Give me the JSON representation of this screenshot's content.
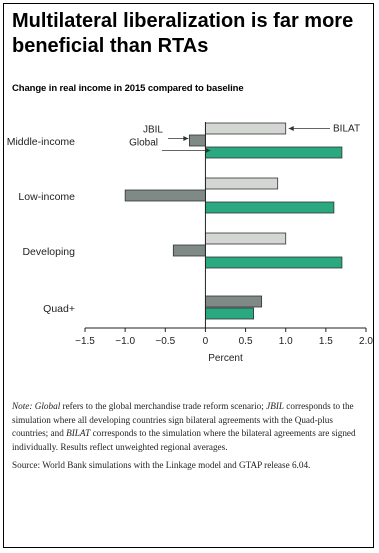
{
  "title": "Multilateral liberalization is far more beneficial than RTAs",
  "subtitle": "Change in real income in 2015 compared to baseline",
  "colors": {
    "jbil": "#7f8a86",
    "bilat": "#d3d6d3",
    "global": "#2aa880",
    "bar_border": "#333333"
  },
  "chart_data": {
    "type": "bar",
    "orientation": "horizontal",
    "categories": [
      "Middle-income",
      "Low-income",
      "Developing",
      "Quad+"
    ],
    "series": [
      {
        "name": "BILAT",
        "values": [
          1.0,
          0.9,
          1.0,
          null
        ]
      },
      {
        "name": "JBIL",
        "values": [
          -0.2,
          -1.0,
          -0.4,
          0.7
        ]
      },
      {
        "name": "Global",
        "values": [
          1.7,
          1.6,
          1.7,
          0.6
        ]
      }
    ],
    "xlabel": "Percent",
    "xlim": [
      -1.5,
      2.0
    ],
    "xticks": [
      "−1.5",
      "−1.0",
      "−0.5",
      "0",
      "0.5",
      "1.0",
      "1.5",
      "2.0"
    ],
    "grid": false
  },
  "note": {
    "label": "Note:",
    "global_term": "Global",
    "text1": "refers to the global merchandise trade reform scenario;",
    "jbil_term": "JBIL",
    "text2": "corresponds to the simulation where all developing countries sign bilateral agreements with the Quad-plus countries; and",
    "bilat_term": "BILAT",
    "text3": "corresponds to the simulation where the bilateral agreements are signed individually. Results reflect unweighted regional averages."
  },
  "source": "Source: World Bank simulations with the Linkage model and GTAP release 6.04."
}
